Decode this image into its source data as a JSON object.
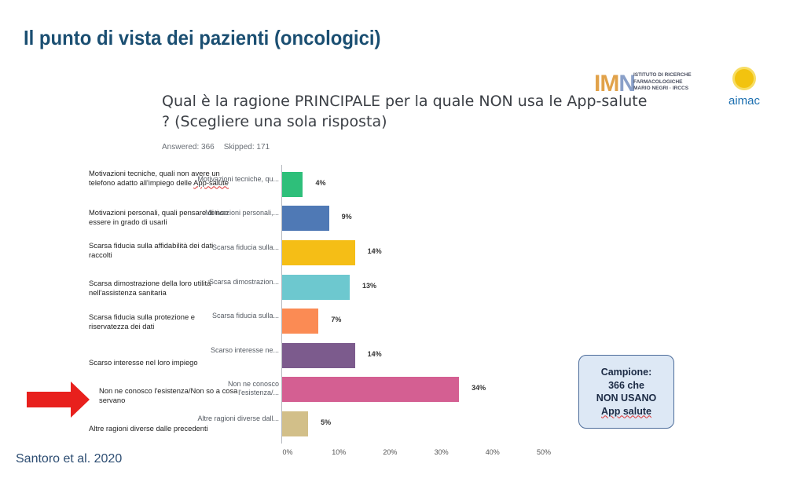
{
  "slide": {
    "title": "Il punto di vista dei pazienti (oncologici)",
    "source": "Santoro et al. 2020"
  },
  "logos": {
    "marionegri_mark": "IMN",
    "marionegri_lines": [
      "ISTITUTO DI RICERCHE",
      "FARMACOLOGICHE",
      "MARIO NEGRI · IRCCS"
    ],
    "aimac": "aimac"
  },
  "survey": {
    "question": "Qual è la ragione PRINCIPALE per la quale NON usa le App-salute ? (Scegliere una sola risposta)",
    "answered": "Answered: 366",
    "skipped": "Skipped: 171"
  },
  "callout": {
    "lines": [
      "Campione:",
      "366 che",
      "NON USANO",
      "App salute"
    ]
  },
  "colors": {
    "title": "#1b4f72",
    "arrow": "#e8201d",
    "callout_bg": "#dde8f5",
    "callout_border": "#4c6c9a"
  },
  "chart_data": {
    "type": "bar",
    "orientation": "horizontal",
    "categories": [
      "Motivazioni tecniche, qu...",
      "Motivazioni personali,...",
      "Scarsa fiducia sulla...",
      "Scarsa dimostrazion...",
      "Scarsa fiducia sulla...",
      "Scarso interesse ne...",
      "Non ne conosco l'esistenza/...",
      "Altre ragioni diverse dall..."
    ],
    "full_labels": [
      "Motivazioni tecniche, quali non avere un telefono adatto all'impiego delle App-salute",
      "Motivazioni personali, quali pensare di non essere in grado di usarli",
      "Scarsa fiducia sulla affidabilità dei dati raccolti",
      "Scarsa dimostrazione della loro utilità nell'assistenza sanitaria",
      "Scarsa fiducia sulla protezione e riservatezza dei dati",
      "Scarso interesse nel loro impiego",
      "Non ne conosco l'esistenza/Non so a cosa servano",
      "Altre ragioni diverse dalle precedenti"
    ],
    "values": [
      4,
      9,
      14,
      13,
      7,
      14,
      34,
      5
    ],
    "value_labels": [
      "4%",
      "9%",
      "14%",
      "13%",
      "7%",
      "14%",
      "34%",
      "5%"
    ],
    "bar_colors": [
      "#2ebf7a",
      "#4f79b5",
      "#f5be16",
      "#6dc8cf",
      "#fb8b54",
      "#7c5b8d",
      "#d45f92",
      "#d2bf89"
    ],
    "xlim": [
      0,
      50
    ],
    "xticks": [
      "0%",
      "10%",
      "20%",
      "30%",
      "40%",
      "50%"
    ],
    "highlight_index": 6
  }
}
